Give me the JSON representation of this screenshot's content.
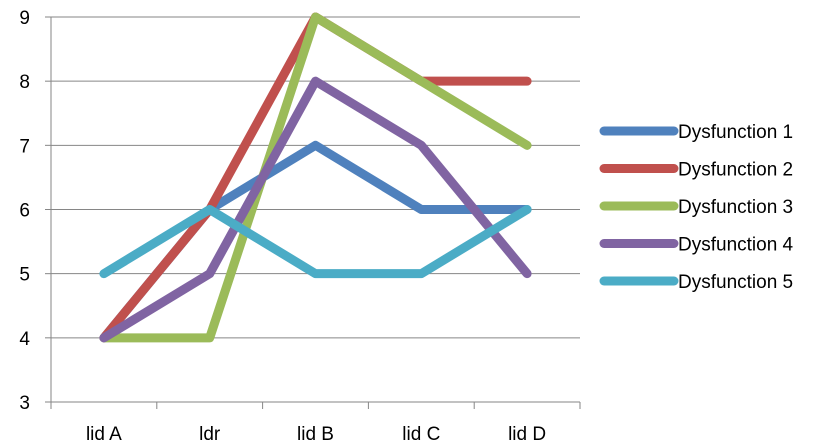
{
  "chart_data": {
    "type": "line",
    "title": "",
    "xlabel": "",
    "ylabel": "",
    "categories": [
      "lid A",
      "ldr",
      "lid B",
      "lid C",
      "lid D"
    ],
    "ylim": [
      3,
      9
    ],
    "yticks": [
      3,
      4,
      5,
      6,
      7,
      8,
      9
    ],
    "grid": "horizontal",
    "legend_position": "right",
    "series": [
      {
        "name": "Dysfunction 1",
        "color": "#4f81bd",
        "values": [
          4,
          6,
          7,
          6,
          6
        ]
      },
      {
        "name": "Dysfunction 2",
        "color": "#c0504d",
        "values": [
          4,
          6,
          9,
          8,
          8
        ]
      },
      {
        "name": "Dysfunction 3",
        "color": "#9bbb59",
        "values": [
          4,
          4,
          9,
          8,
          7
        ]
      },
      {
        "name": "Dysfunction 4",
        "color": "#8064a2",
        "values": [
          4,
          5,
          8,
          7,
          5
        ]
      },
      {
        "name": "Dysfunction 5",
        "color": "#4bacc6",
        "values": [
          5,
          6,
          5,
          5,
          6
        ]
      }
    ]
  }
}
